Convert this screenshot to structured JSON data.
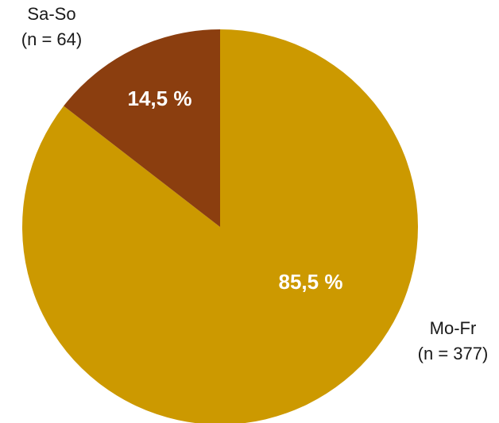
{
  "chart_data": {
    "type": "pie",
    "start_angle": 0,
    "direction": "clockwise",
    "slices": [
      {
        "label": "Mo-Fr",
        "n_label": "(n = 377)",
        "value": 377,
        "percent_label": "85,5 %",
        "color": "#CC9900"
      },
      {
        "label": "Sa-So",
        "n_label": "(n = 64)",
        "value": 64,
        "percent_label": "14,5 %",
        "color": "#8B3E0F"
      }
    ]
  }
}
